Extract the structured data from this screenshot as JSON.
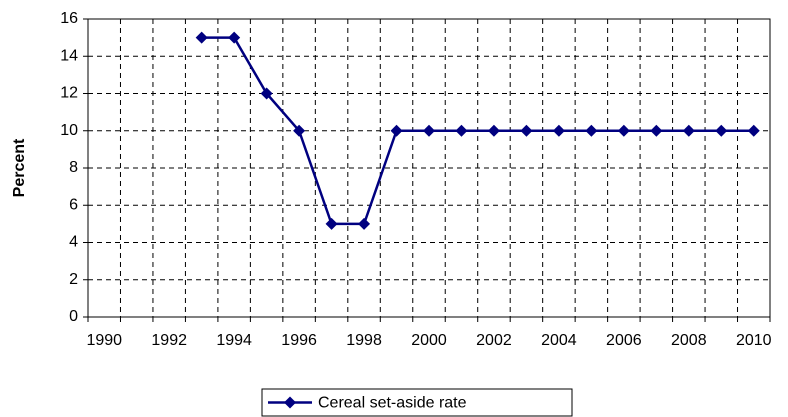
{
  "chart_data": {
    "type": "line",
    "y_label": "Percent",
    "categories": [
      "1990",
      null,
      "1992",
      null,
      "1994",
      null,
      "1996",
      null,
      "1998",
      null,
      "2000",
      null,
      "2002",
      null,
      "2004",
      null,
      "2006",
      null,
      "2008",
      null,
      "2010"
    ],
    "series": [
      {
        "name": "Cereal set-aside rate",
        "color": "#000080",
        "values": [
          null,
          null,
          null,
          15,
          15,
          12,
          10,
          5,
          5,
          10,
          10,
          10,
          10,
          10,
          10,
          10,
          10,
          10,
          10,
          10,
          10
        ]
      }
    ],
    "ylim": [
      0,
      16
    ],
    "yticks": [
      0,
      2,
      4,
      6,
      8,
      10,
      12,
      14,
      16
    ],
    "grid": true,
    "legend": "bottom"
  }
}
